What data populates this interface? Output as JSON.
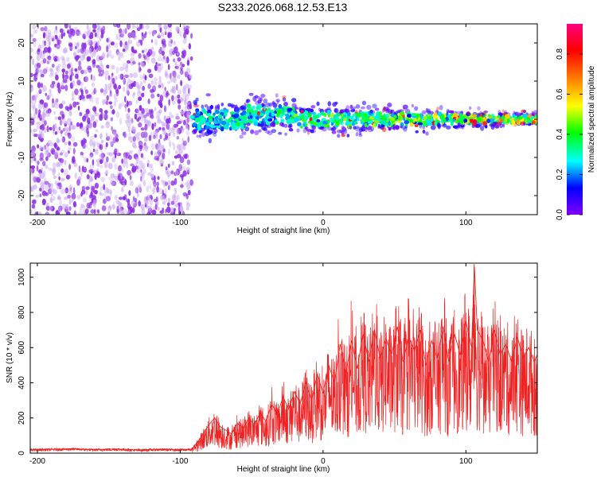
{
  "title": "S233.2026.068.12.53.E13",
  "colors": {
    "snr_line": "#ee2222",
    "noise_dot": "#8a2be2"
  },
  "chart_data": [
    {
      "type": "heatmap",
      "xlabel": "Height of straight line (km)",
      "ylabel": "Frequency (Hz)",
      "xlim": [
        -205,
        150
      ],
      "ylim": [
        -25,
        25
      ],
      "xticks": [
        -200,
        -100,
        0,
        100
      ],
      "xtick_labels": [
        "-200",
        "-100",
        "0",
        "100"
      ],
      "yticks": [
        -20,
        -10,
        0,
        10,
        20
      ],
      "ytick_labels": [
        "-20",
        "-10",
        "0",
        "10",
        "20"
      ],
      "noise_region_x": [
        -205,
        -92
      ],
      "signal_region_x": [
        -92,
        150
      ],
      "colorbar": {
        "label": "Normalized spectral amplitude",
        "range": [
          0,
          0.95
        ],
        "ticks": [
          0.0,
          0.2,
          0.4,
          0.6,
          0.8
        ],
        "tick_labels": [
          "0.0",
          "0.2",
          "0.4",
          "0.6",
          "0.8"
        ],
        "colormap": [
          "#8000ff",
          "#0000ff",
          "#00ffff",
          "#00ff00",
          "#ffff00",
          "#ff8000",
          "#ff0000",
          "#ff0080"
        ]
      }
    },
    {
      "type": "line",
      "xlabel": "Height of straight line (km)",
      "ylabel": "SNR (10 * v/v)",
      "xlim": [
        -205,
        150
      ],
      "ylim": [
        0,
        1080
      ],
      "xticks": [
        -200,
        -100,
        0,
        100
      ],
      "xtick_labels": [
        "-200",
        "-100",
        "0",
        "100"
      ],
      "yticks": [
        0,
        200,
        400,
        600,
        800,
        1000
      ],
      "ytick_labels": [
        "0",
        "200",
        "400",
        "600",
        "800",
        "1000"
      ],
      "series": [
        {
          "name": "SNR",
          "x": [
            -205,
            -190,
            -175,
            -160,
            -145,
            -130,
            -115,
            -100,
            -92,
            -88,
            -84,
            -80,
            -76,
            -72,
            -68,
            -64,
            -60,
            -56,
            -52,
            -48,
            -44,
            -40,
            -36,
            -32,
            -28,
            -24,
            -20,
            -16,
            -12,
            -8,
            -4,
            0,
            4,
            8,
            12,
            16,
            20,
            24,
            28,
            32,
            36,
            40,
            44,
            48,
            52,
            56,
            60,
            64,
            68,
            72,
            76,
            80,
            84,
            88,
            92,
            96,
            100,
            104,
            106,
            108,
            112,
            116,
            120,
            124,
            128,
            132,
            136,
            140,
            144,
            148,
            150
          ],
          "y": [
            20,
            22,
            25,
            20,
            24,
            18,
            22,
            20,
            22,
            60,
            110,
            160,
            200,
            150,
            130,
            110,
            170,
            140,
            200,
            160,
            230,
            180,
            280,
            220,
            320,
            250,
            350,
            280,
            400,
            300,
            450,
            340,
            500,
            400,
            620,
            450,
            640,
            480,
            680,
            520,
            700,
            540,
            650,
            560,
            720,
            520,
            660,
            580,
            700,
            500,
            640,
            540,
            720,
            520,
            680,
            560,
            750,
            600,
            1060,
            700,
            640,
            520,
            700,
            560,
            620,
            520,
            660,
            540,
            600,
            520,
            560
          ]
        }
      ]
    }
  ]
}
